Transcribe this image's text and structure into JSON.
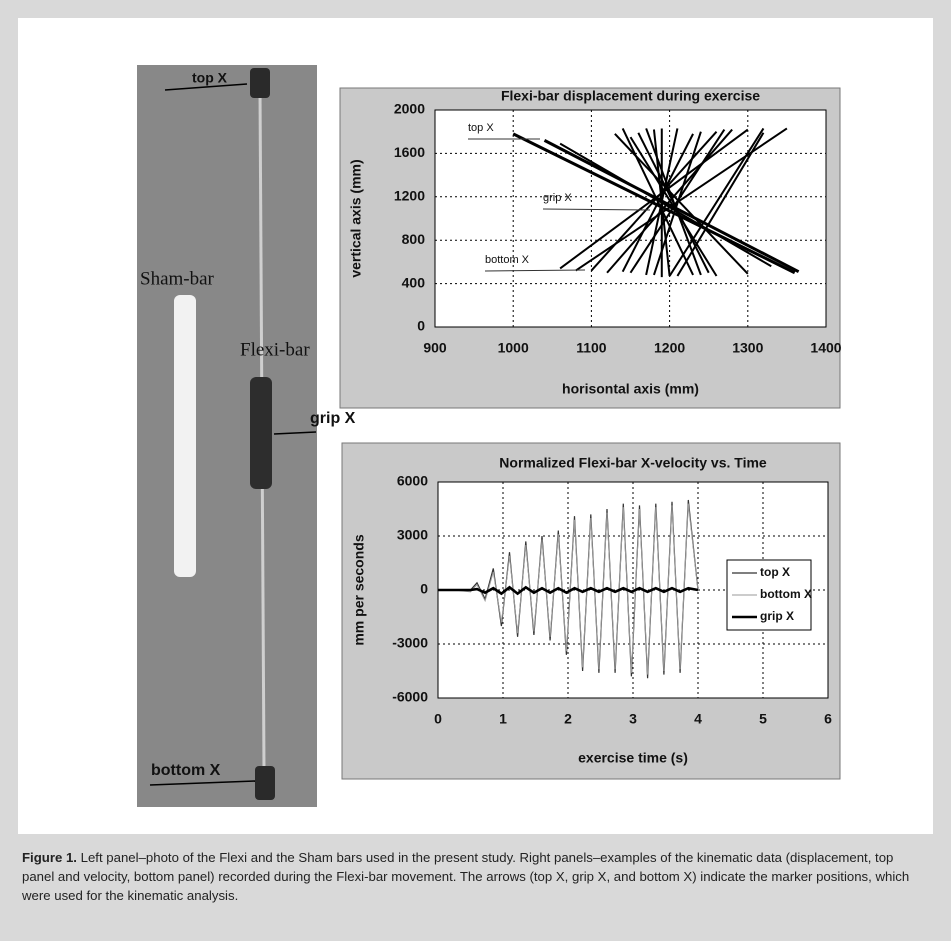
{
  "chart_data": [
    {
      "type": "segments",
      "title": "Flexi-bar displacement during exercise",
      "xlabel": "horisontal axis (mm)",
      "ylabel": "vertical axis (mm)",
      "xlim": [
        900,
        1400
      ],
      "xticks": [
        900,
        1000,
        1100,
        1200,
        1300,
        1400
      ],
      "ylim": [
        0,
        2000
      ],
      "yticks": [
        0,
        400,
        800,
        1200,
        1600,
        2000
      ],
      "grid": true,
      "color": "#000000",
      "annotations": [
        "top X",
        "grip X",
        "bottom X"
      ],
      "segments": [
        {
          "x": [
            1000,
            1360
          ],
          "y": [
            1780,
            500
          ]
        },
        {
          "x": [
            1040,
            1365
          ],
          "y": [
            1720,
            510
          ]
        },
        {
          "x": [
            1170,
            1240
          ],
          "y": [
            1830,
            480
          ]
        },
        {
          "x": [
            1180,
            1200
          ],
          "y": [
            1820,
            470
          ]
        },
        {
          "x": [
            1190,
            1190
          ],
          "y": [
            1830,
            460
          ]
        },
        {
          "x": [
            1210,
            1170
          ],
          "y": [
            1830,
            480
          ]
        },
        {
          "x": [
            1230,
            1140
          ],
          "y": [
            1780,
            510
          ]
        },
        {
          "x": [
            1260,
            1100
          ],
          "y": [
            1800,
            520
          ]
        },
        {
          "x": [
            1270,
            1150
          ],
          "y": [
            1820,
            500
          ]
        },
        {
          "x": [
            1280,
            1120
          ],
          "y": [
            1820,
            500
          ]
        },
        {
          "x": [
            1300,
            1060
          ],
          "y": [
            1820,
            540
          ]
        },
        {
          "x": [
            1320,
            1210
          ],
          "y": [
            1790,
            470
          ]
        },
        {
          "x": [
            1350,
            1080
          ],
          "y": [
            1830,
            520
          ]
        },
        {
          "x": [
            1130,
            1300
          ],
          "y": [
            1780,
            490
          ]
        },
        {
          "x": [
            1150,
            1260
          ],
          "y": [
            1750,
            470
          ]
        },
        {
          "x": [
            1160,
            1250
          ],
          "y": [
            1790,
            500
          ]
        },
        {
          "x": [
            1240,
            1180
          ],
          "y": [
            1800,
            480
          ]
        },
        {
          "x": [
            1320,
            1200
          ],
          "y": [
            1830,
            470
          ]
        },
        {
          "x": [
            1060,
            1330
          ],
          "y": [
            1690,
            560
          ]
        },
        {
          "x": [
            1140,
            1230
          ],
          "y": [
            1830,
            480
          ]
        }
      ]
    },
    {
      "type": "line",
      "title": "Normalized  Flexi-bar X-velocity vs. Time",
      "xlabel": "exercise time (s)",
      "ylabel": "mm per seconds",
      "xlim": [
        0,
        6
      ],
      "xticks": [
        0,
        1,
        2,
        3,
        4,
        5,
        6
      ],
      "ylim": [
        -6000,
        6000
      ],
      "yticks": [
        -6000,
        -3000,
        0,
        3000,
        6000
      ],
      "grid": true,
      "legend": "right",
      "x": [
        0,
        0.25,
        0.5,
        0.6,
        0.725,
        0.85,
        0.975,
        1.1,
        1.225,
        1.35,
        1.475,
        1.6,
        1.725,
        1.85,
        1.975,
        2.1,
        2.225,
        2.35,
        2.475,
        2.6,
        2.725,
        2.85,
        2.975,
        3.1,
        3.225,
        3.35,
        3.475,
        3.6,
        3.725,
        3.85,
        4.0
      ],
      "series": [
        {
          "name": "top X",
          "color": "#333333",
          "values": [
            0,
            0,
            0,
            400,
            -500,
            1200,
            -2000,
            2100,
            -2600,
            2700,
            -2500,
            3000,
            -2800,
            3300,
            -3600,
            4100,
            -4500,
            4200,
            -4600,
            4500,
            -4600,
            4800,
            -4800,
            4700,
            -4900,
            4800,
            -4700,
            4900,
            -4600,
            5000,
            0
          ]
        },
        {
          "name": "bottom X",
          "color": "#999999",
          "values": [
            0,
            0,
            -100,
            300,
            -600,
            1000,
            -1800,
            1900,
            -2400,
            2500,
            -2300,
            2800,
            -2600,
            3100,
            -3400,
            3900,
            -4300,
            4000,
            -4400,
            4300,
            -4400,
            4600,
            -4600,
            4500,
            -4700,
            4600,
            -4500,
            4700,
            -4400,
            4800,
            0
          ]
        },
        {
          "name": "grip X",
          "color": "#000000",
          "values": [
            0,
            0,
            0,
            50,
            -150,
            100,
            -200,
            150,
            -200,
            150,
            -150,
            100,
            -150,
            100,
            -150,
            100,
            -100,
            100,
            -100,
            100,
            -100,
            100,
            -100,
            100,
            -100,
            100,
            -100,
            100,
            -100,
            100,
            0
          ]
        }
      ]
    }
  ],
  "photo": {
    "top_label": "top X",
    "sham_label": "Sham-bar",
    "flexi_label": "Flexi-bar",
    "grip_label": "grip X",
    "bottom_label": "bottom X"
  },
  "caption": {
    "label": "Figure 1.",
    "text": "Left panel–photo of the Flexi and the Sham bars used in the present study. Right panels–examples of the kinematic data (displacement, top panel and velocity, bottom panel) recorded during the Flexi-bar movement. The arrows (top X, grip X, and bottom X) indicate the marker positions, which were used for the kinematic analysis."
  }
}
